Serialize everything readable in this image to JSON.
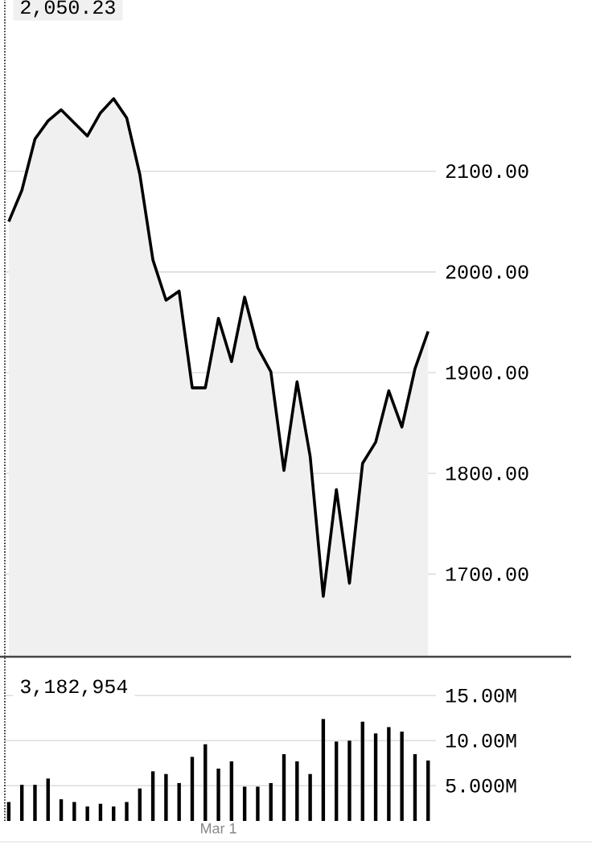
{
  "chart_data": [
    {
      "type": "area",
      "color": "#000000",
      "categories": [
        null,
        null,
        null,
        null,
        null,
        null,
        null,
        null,
        null,
        null,
        null,
        null,
        null,
        null,
        null,
        null,
        null,
        null,
        null,
        null,
        null,
        null,
        null,
        null,
        null,
        null,
        null,
        null,
        null,
        null,
        null,
        null,
        null
      ],
      "values": [
        2050,
        2081,
        2132,
        2150,
        2161,
        2148,
        2135,
        2158,
        2172,
        2153,
        2097,
        2012,
        1972,
        1981,
        1885,
        1885,
        1954,
        1911,
        1975,
        1925,
        1901,
        1803,
        1891,
        1817,
        1678,
        1784,
        1691,
        1810,
        1831,
        1882,
        1846,
        1904,
        1941
      ],
      "ylim": [
        1618,
        2270
      ],
      "yticks": [
        {
          "value": 1700,
          "label": "1700.00"
        },
        {
          "value": 1800,
          "label": "1800.00"
        },
        {
          "value": 1900,
          "label": "1900.00"
        },
        {
          "value": 2000,
          "label": "2000.00"
        },
        {
          "value": 2100,
          "label": "2100.00"
        }
      ],
      "grid": "y",
      "tick_labels": "y",
      "annotations": [
        "2,050.23"
      ]
    },
    {
      "type": "bar",
      "color": "#000000",
      "categories": [
        null,
        null,
        null,
        null,
        null,
        null,
        null,
        null,
        null,
        null,
        null,
        null,
        null,
        null,
        null,
        null,
        "Mar 1",
        null,
        null,
        null,
        null,
        null,
        null,
        null,
        null,
        null,
        null,
        null,
        null,
        null,
        null,
        null,
        null
      ],
      "values": [
        3.2,
        5.1,
        5.1,
        5.8,
        3.5,
        3.2,
        2.7,
        3.0,
        2.7,
        3.2,
        4.7,
        6.6,
        6.3,
        5.3,
        8.2,
        9.6,
        6.9,
        7.7,
        4.9,
        4.9,
        5.3,
        8.5,
        7.7,
        6.3,
        12.4,
        9.9,
        10.0,
        12.1,
        10.8,
        11.5,
        11.0,
        8.5,
        7.8
      ],
      "ylim": [
        1.1,
        19.3
      ],
      "yticks": [
        {
          "value": 5,
          "label": "5.000M"
        },
        {
          "value": 10,
          "label": "10.00M"
        },
        {
          "value": 15,
          "label": "15.00M"
        }
      ],
      "grid": "y",
      "annotations": [
        "3,182,954"
      ]
    }
  ]
}
